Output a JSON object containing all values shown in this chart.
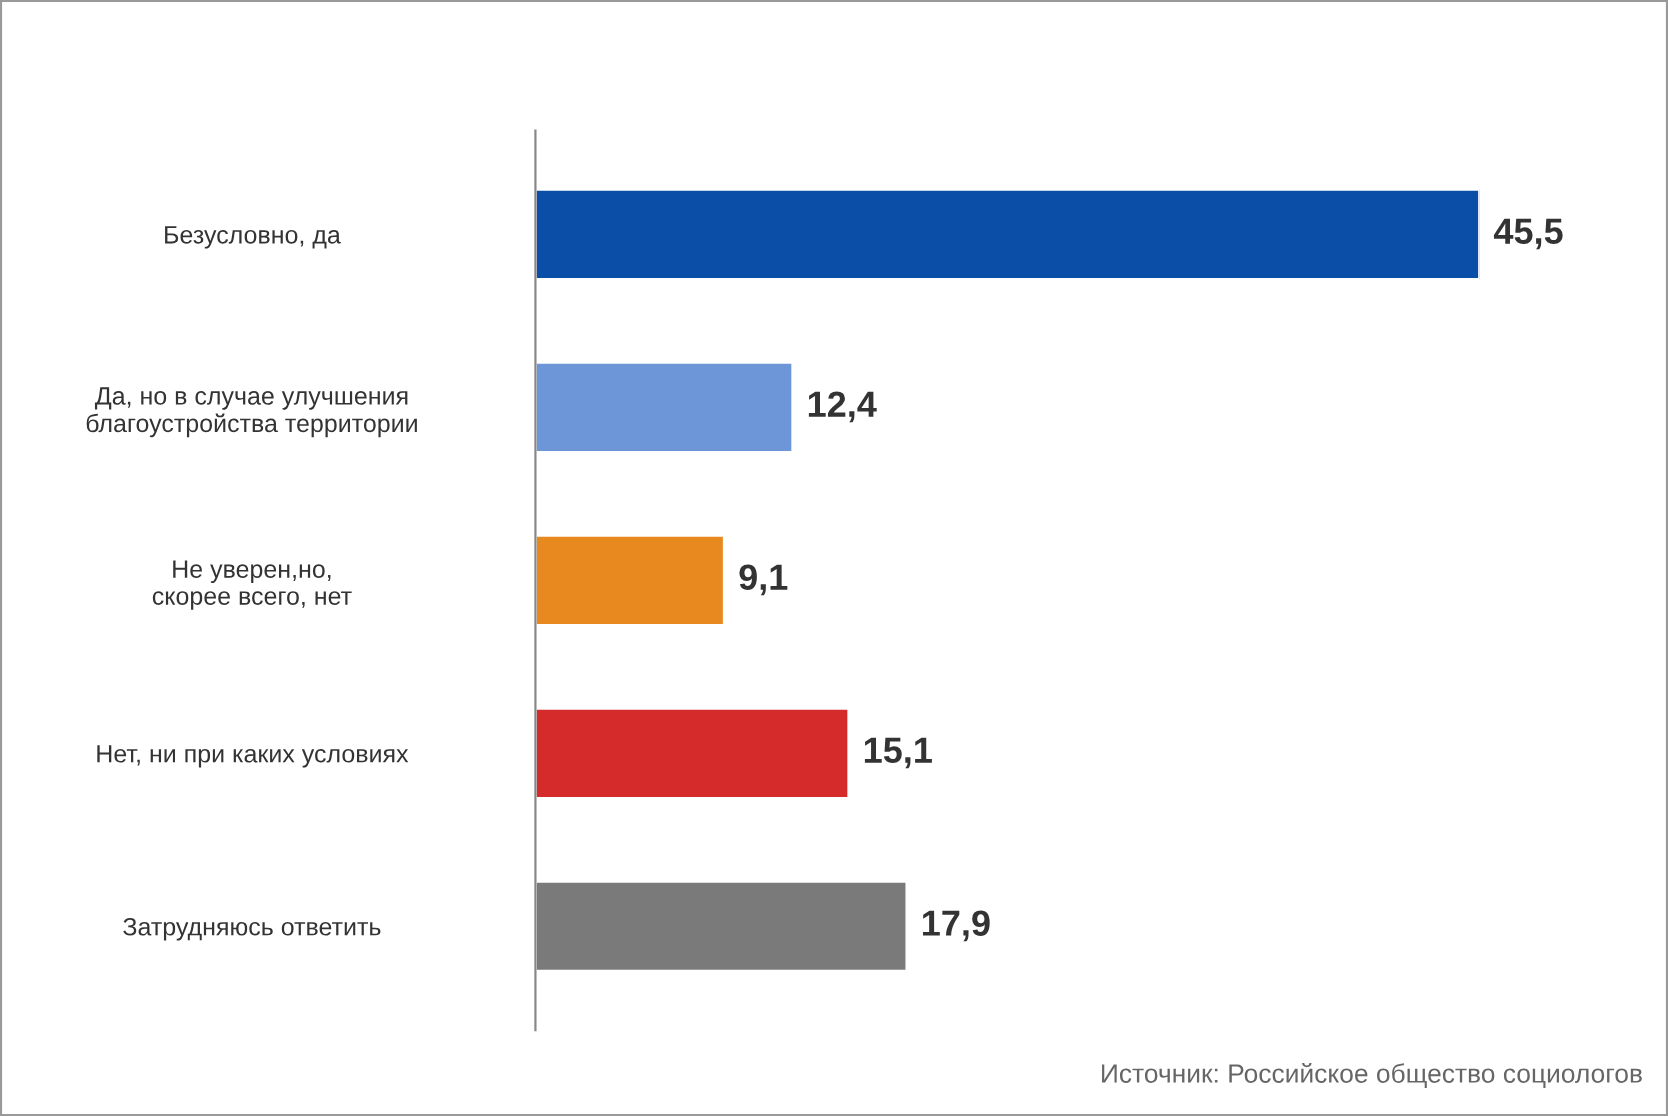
{
  "chart_data": {
    "type": "bar",
    "orientation": "horizontal",
    "categories": [
      "Безусловно, да",
      "Да, но в случае улучшения\nблагоустройства территории",
      "Не уверен,но,\nскорее всего, нет",
      "Нет, ни при каких условиях",
      "Затрудняюсь ответить"
    ],
    "values": [
      45.5,
      12.4,
      9.1,
      15.1,
      17.9
    ],
    "colors": [
      "#0b4ea8",
      "#6c96d8",
      "#e8891f",
      "#d52b2b",
      "#7a7a7a"
    ],
    "value_labels": [
      "45,5",
      "12,4",
      "9,1",
      "15,1",
      "17,9"
    ],
    "tick_labels": "y",
    "grid": false,
    "legend": false,
    "annotations": [
      "Источник: Российское общество социологов"
    ]
  }
}
